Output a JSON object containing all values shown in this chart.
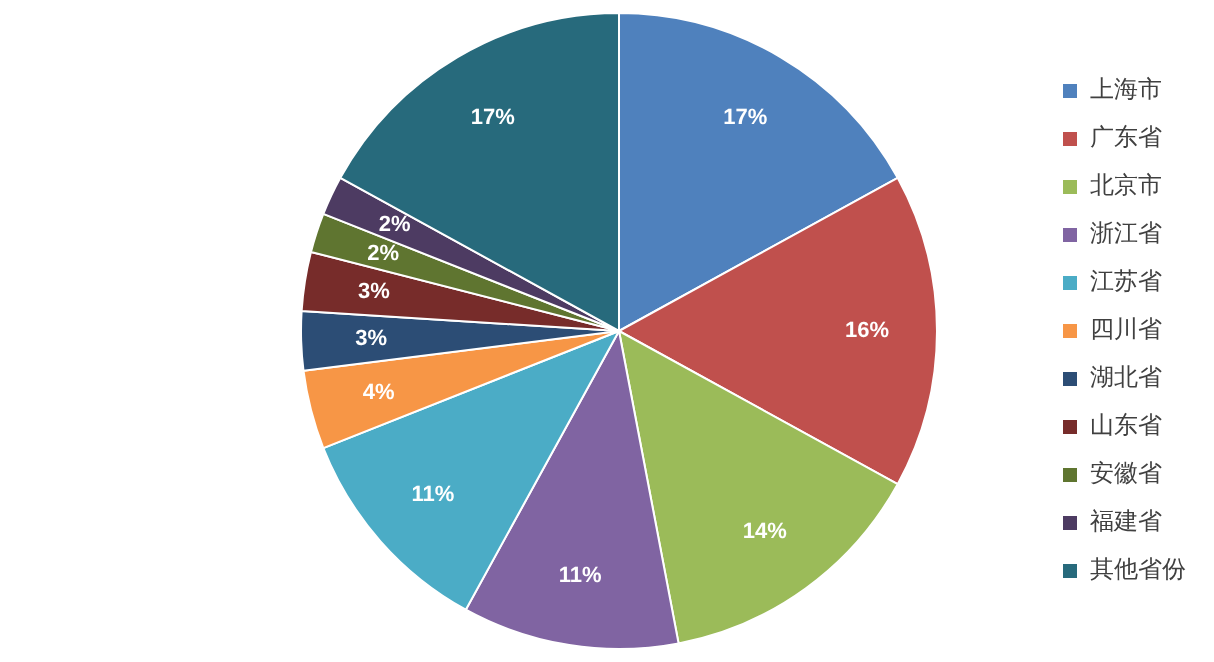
{
  "chart_data": {
    "type": "pie",
    "categories": [
      "上海市",
      "广东省",
      "北京市",
      "浙江省",
      "江苏省",
      "四川省",
      "湖北省",
      "山东省",
      "安徽省",
      "福建省",
      "其他省份"
    ],
    "values": [
      17,
      16,
      14,
      11,
      11,
      4,
      3,
      3,
      2,
      2,
      17
    ],
    "value_labels": [
      "17%",
      "16%",
      "14%",
      "11%",
      "11%",
      "4%",
      "3%",
      "3%",
      "2%",
      "2%",
      "17%"
    ],
    "colors": [
      "#4f81bd",
      "#c0504d",
      "#9bbb59",
      "#8064a2",
      "#4bacc6",
      "#f79646",
      "#2c4d75",
      "#772c2a",
      "#5f7530",
      "#4d3b62",
      "#276a7c"
    ],
    "legend": "right"
  }
}
